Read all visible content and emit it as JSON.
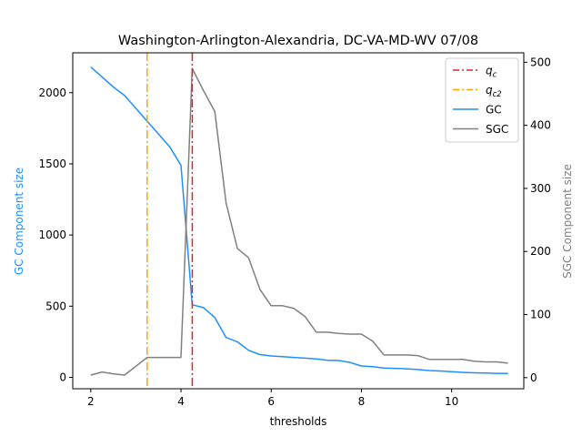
{
  "chart_data": {
    "type": "line",
    "title": "Washington-Arlington-Alexandria, DC-VA-MD-WV 07/08",
    "xlabel": "thresholds",
    "ylabel_left": "GC Component size",
    "ylabel_right": "SGC Component size",
    "xlim": [
      1.6,
      11.6
    ],
    "ylim_left": [
      -80,
      2280
    ],
    "ylim_right": [
      -17.6,
      515
    ],
    "xticks": [
      2,
      4,
      6,
      8,
      10
    ],
    "yticks_left": [
      0,
      500,
      1000,
      1500,
      2000
    ],
    "yticks_right": [
      0,
      100,
      200,
      300,
      400,
      500
    ],
    "grid": false,
    "legend_position": "top-right",
    "vlines": [
      {
        "name": "q_c",
        "label_base": "q",
        "label_sub": "c",
        "x": 4.25,
        "color": "#d62728",
        "style": "dashdot"
      },
      {
        "name": "q_c2",
        "label_base": "q",
        "label_sub": "c2",
        "x": 3.25,
        "color": "#ffa500",
        "style": "dashdot"
      }
    ],
    "series": [
      {
        "name": "GC",
        "axis": "left",
        "color": "#1f8fff",
        "x": [
          2.0,
          2.25,
          2.5,
          2.75,
          3.0,
          3.25,
          3.5,
          3.75,
          4.0,
          4.25,
          4.5,
          4.75,
          5.0,
          5.25,
          5.5,
          5.75,
          6.0,
          6.25,
          6.5,
          6.75,
          7.0,
          7.25,
          7.5,
          7.75,
          8.0,
          8.25,
          8.5,
          8.75,
          9.0,
          9.25,
          9.5,
          9.75,
          10.0,
          10.25,
          10.5,
          10.75,
          11.0,
          11.25
        ],
        "values": [
          2180,
          2110,
          2040,
          1980,
          1890,
          1800,
          1710,
          1620,
          1490,
          510,
          490,
          420,
          280,
          250,
          190,
          160,
          150,
          145,
          140,
          135,
          130,
          120,
          118,
          105,
          80,
          75,
          65,
          63,
          60,
          55,
          48,
          45,
          40,
          35,
          32,
          30,
          28,
          27
        ]
      },
      {
        "name": "SGC",
        "axis": "right",
        "color": "#808080",
        "x": [
          2.0,
          2.25,
          2.5,
          2.75,
          3.0,
          3.25,
          3.5,
          3.75,
          4.0,
          4.25,
          4.5,
          4.75,
          5.0,
          5.25,
          5.5,
          5.75,
          6.0,
          6.25,
          6.5,
          6.75,
          7.0,
          7.25,
          7.5,
          7.75,
          8.0,
          8.25,
          8.5,
          8.75,
          9.0,
          9.25,
          9.5,
          9.75,
          10.0,
          10.25,
          10.5,
          10.75,
          11.0,
          11.25
        ],
        "values": [
          4,
          9,
          6,
          4,
          18,
          32,
          32,
          32,
          32,
          490,
          455,
          422,
          277,
          205,
          190,
          140,
          114,
          114,
          110,
          97,
          72,
          72,
          70,
          69,
          69,
          58,
          36,
          36,
          36,
          35,
          29,
          29,
          29,
          29,
          26,
          25,
          25,
          23
        ]
      }
    ]
  }
}
